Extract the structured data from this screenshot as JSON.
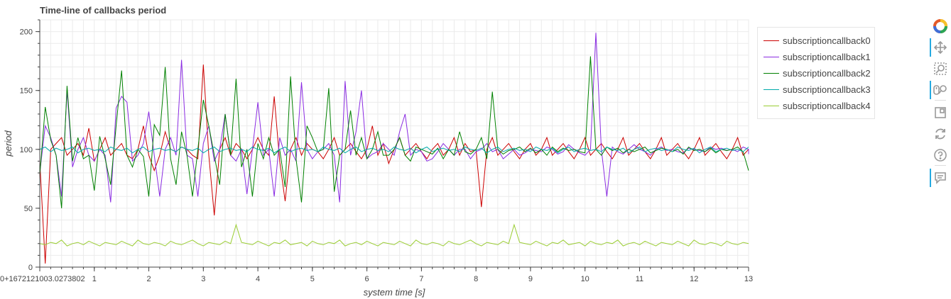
{
  "chart_data": {
    "type": "line",
    "title": "Time-line of callbacks period",
    "xlabel": "system time [s]",
    "ylabel": "period",
    "xlim": [
      0,
      13
    ],
    "ylim": [
      0,
      210
    ],
    "x_ticks": [
      0,
      1,
      2,
      3,
      4,
      5,
      6,
      7,
      8,
      9,
      10,
      11,
      12,
      13
    ],
    "x_tick_labels": [
      "0+1672121003.0273802",
      "1",
      "2",
      "3",
      "4",
      "5",
      "6",
      "7",
      "8",
      "9",
      "10",
      "11",
      "12",
      "13"
    ],
    "y_ticks": [
      0,
      50,
      100,
      150,
      200
    ],
    "y_tick_labels": [
      "0",
      "50",
      "100",
      "150",
      "200"
    ],
    "grid": true,
    "legend_position": "top-right, outside plot",
    "series": [
      {
        "name": "subscriptioncallback0",
        "color": "#cc0000",
        "x_step": 0.1,
        "x_start": 0.0,
        "values": [
          90,
          3,
          100,
          105,
          110,
          95,
          100,
          105,
          95,
          118,
          90,
          100,
          110,
          95,
          100,
          105,
          95,
          92,
          100,
          120,
          95,
          82,
          95,
          115,
          100,
          98,
          102,
          100,
          95,
          92,
          172,
          95,
          44,
          100,
          110,
          95,
          105,
          100,
          92,
          100,
          110,
          100,
          95,
          145,
          90,
          56,
          100,
          110,
          95,
          105,
          100,
          98,
          92,
          100,
          110,
          95,
          100,
          105,
          98,
          92,
          100,
          120,
          95,
          105,
          88,
          100,
          110,
          95,
          100,
          105,
          98,
          92,
          100,
          105,
          95,
          100,
          110,
          95,
          105,
          98,
          100,
          51,
          100,
          110,
          95,
          100,
          105,
          98,
          92,
          100,
          105,
          95,
          100,
          110,
          95,
          100,
          105,
          98,
          92,
          100,
          110,
          95,
          100,
          105,
          98,
          92,
          100,
          110,
          95,
          100,
          105,
          98,
          92,
          100,
          110,
          95,
          100,
          105,
          98,
          92,
          100,
          110,
          95,
          100,
          105,
          98,
          92,
          100,
          110,
          95,
          100
        ]
      },
      {
        "name": "subscriptioncallback1",
        "color": "#8a2be2",
        "x_step": 0.1,
        "x_start": 0.0,
        "values": [
          80,
          120,
          110,
          95,
          60,
          150,
          85,
          100,
          110,
          95,
          90,
          100,
          95,
          55,
          135,
          145,
          140,
          90,
          95,
          105,
          132,
          95,
          60,
          100,
          110,
          95,
          176,
          95,
          92,
          60,
          105,
          120,
          90,
          100,
          130,
          95,
          90,
          100,
          62,
          100,
          140,
          95,
          100,
          60,
          110,
          95,
          100,
          90,
          157,
          100,
          92,
          98,
          100,
          105,
          95,
          55,
          158,
          95,
          115,
          150,
          92,
          96,
          98,
          105,
          100,
          95,
          115,
          130,
          95,
          100,
          98,
          90,
          92,
          98,
          105,
          100,
          95,
          100,
          100,
          92,
          98,
          100,
          105,
          98,
          100,
          92,
          96,
          100,
          95,
          97,
          100,
          99,
          98,
          102,
          100,
          96,
          98,
          104,
          100,
          97,
          95,
          100,
          199,
          100,
          60,
          102,
          98,
          96,
          100,
          104,
          100,
          98,
          95,
          100,
          102,
          99,
          100,
          98,
          97,
          101,
          100,
          99,
          98,
          102,
          100,
          101,
          99,
          100,
          98,
          102,
          100,
          96
        ]
      },
      {
        "name": "subscriptioncallback2",
        "color": "#008000",
        "x_step": 0.1,
        "x_start": 0.0,
        "values": [
          78,
          136,
          108,
          95,
          50,
          154,
          90,
          110,
          92,
          95,
          65,
          111,
          92,
          70,
          120,
          167,
          95,
          85,
          100,
          94,
          60,
          121,
          112,
          170,
          92,
          70,
          115,
          95,
          60,
          100,
          142,
          120,
          95,
          70,
          130,
          95,
          160,
          85,
          100,
          60,
          105,
          92,
          110,
          95,
          100,
          68,
          162,
          92,
          55,
          120,
          110,
          98,
          100,
          152,
          64,
          95,
          100,
          133,
          95,
          110,
          92,
          100,
          115,
          95,
          95,
          100,
          110,
          95,
          90,
          102,
          100,
          98,
          96,
          101,
          92,
          100,
          95,
          115,
          98,
          96,
          100,
          110,
          92,
          149,
          100,
          96,
          99,
          100,
          102,
          98,
          101,
          97,
          100,
          95,
          102,
          98,
          101,
          99,
          100,
          98,
          97,
          179,
          100,
          95,
          102,
          99,
          101,
          97,
          100,
          98,
          100,
          102,
          97,
          99,
          101,
          100,
          98,
          100,
          96,
          102,
          99,
          100,
          98,
          101,
          97,
          100,
          99,
          100,
          102,
          98,
          82
        ]
      },
      {
        "name": "subscriptioncallback3",
        "color": "#00aaaa",
        "x_step": 0.1,
        "x_start": 0.0,
        "values": [
          100,
          102,
          98,
          101,
          99,
          100,
          102,
          97,
          100,
          101,
          99,
          100,
          98,
          102,
          100,
          99,
          101,
          97,
          100,
          102,
          98,
          100,
          101,
          99,
          100,
          98,
          102,
          100,
          99,
          101,
          97,
          100,
          102,
          98,
          100,
          101,
          99,
          100,
          98,
          102,
          100,
          99,
          101,
          97,
          100,
          102,
          98,
          100,
          101,
          99,
          100,
          98,
          102,
          100,
          99,
          101,
          97,
          100,
          102,
          98,
          100,
          101,
          99,
          100,
          98,
          102,
          100,
          99,
          101,
          97,
          100,
          102,
          98,
          100,
          101,
          99,
          100,
          98,
          102,
          100,
          99,
          101,
          97,
          100,
          102,
          98,
          100,
          101,
          99,
          100,
          98,
          102,
          100,
          99,
          101,
          97,
          100,
          102,
          98,
          100,
          101,
          99,
          100,
          98,
          102,
          100,
          99,
          101,
          97,
          100,
          102,
          98,
          100,
          101,
          99,
          100,
          98,
          102,
          100,
          99,
          101,
          97,
          100,
          102,
          98,
          100,
          101,
          99,
          100,
          98,
          102
        ]
      },
      {
        "name": "subscriptioncallback4",
        "color": "#9acd32",
        "x_step": 0.1,
        "x_start": 0.0,
        "values": [
          20,
          19,
          21,
          20,
          23,
          18,
          20,
          21,
          19,
          22,
          20,
          18,
          21,
          20,
          19,
          22,
          20,
          18,
          23,
          20,
          19,
          21,
          20,
          18,
          22,
          20,
          19,
          21,
          23,
          20,
          18,
          21,
          20,
          19,
          22,
          20,
          36,
          21,
          20,
          19,
          22,
          20,
          18,
          21,
          20,
          23,
          19,
          20,
          21,
          18,
          22,
          20,
          19,
          21,
          20,
          23,
          18,
          20,
          21,
          19,
          22,
          20,
          18,
          21,
          20,
          19,
          22,
          20,
          18,
          23,
          20,
          19,
          21,
          20,
          18,
          22,
          20,
          19,
          21,
          23,
          20,
          18,
          21,
          20,
          19,
          22,
          20,
          36,
          21,
          20,
          19,
          22,
          20,
          18,
          21,
          20,
          23,
          19,
          20,
          21,
          18,
          22,
          20,
          19,
          21,
          20,
          23,
          18,
          20,
          21,
          19,
          22,
          20,
          18,
          21,
          20,
          19,
          22,
          20,
          18,
          23,
          20,
          19,
          21,
          20,
          18,
          22,
          20,
          19,
          21,
          20
        ]
      }
    ]
  },
  "toolbar": {
    "items": [
      {
        "name": "bokeh-logo-icon"
      },
      {
        "name": "pan-tool-icon"
      },
      {
        "name": "box-zoom-tool-icon"
      },
      {
        "name": "wheel-zoom-tool-icon"
      },
      {
        "name": "save-tool-icon"
      },
      {
        "name": "reset-tool-icon"
      },
      {
        "name": "help-tool-icon"
      },
      {
        "name": "hover-tool-icon"
      }
    ]
  }
}
